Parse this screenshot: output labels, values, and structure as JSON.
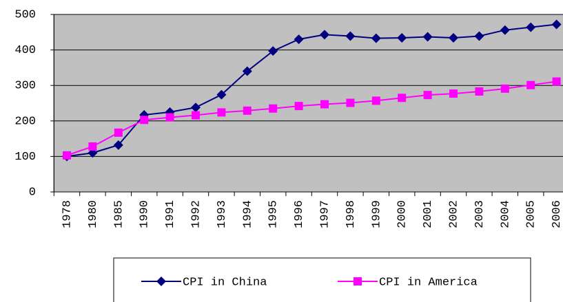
{
  "chart_data": {
    "type": "line",
    "categories": [
      "1978",
      "1980",
      "1985",
      "1990",
      "1991",
      "1992",
      "1993",
      "1994",
      "1995",
      "1996",
      "1997",
      "1998",
      "1999",
      "2000",
      "2001",
      "2002",
      "2003",
      "2004",
      "2005",
      "2006"
    ],
    "series": [
      {
        "name": "CPI in China",
        "color": "#000080",
        "marker": "diamond",
        "values": [
          100,
          110,
          132,
          217,
          225,
          238,
          274,
          340,
          397,
          430,
          443,
          439,
          433,
          434,
          437,
          434,
          439,
          456,
          464,
          472
        ]
      },
      {
        "name": "CPI in America",
        "color": "#ff00ff",
        "marker": "square",
        "values": [
          103,
          128,
          167,
          203,
          210,
          216,
          224,
          229,
          235,
          242,
          247,
          251,
          257,
          265,
          273,
          277,
          283,
          291,
          301,
          311
        ]
      }
    ],
    "ylim": [
      0,
      500
    ],
    "yticks": [
      0,
      100,
      200,
      300,
      400,
      500
    ],
    "grid": true,
    "legend": "bottom"
  }
}
